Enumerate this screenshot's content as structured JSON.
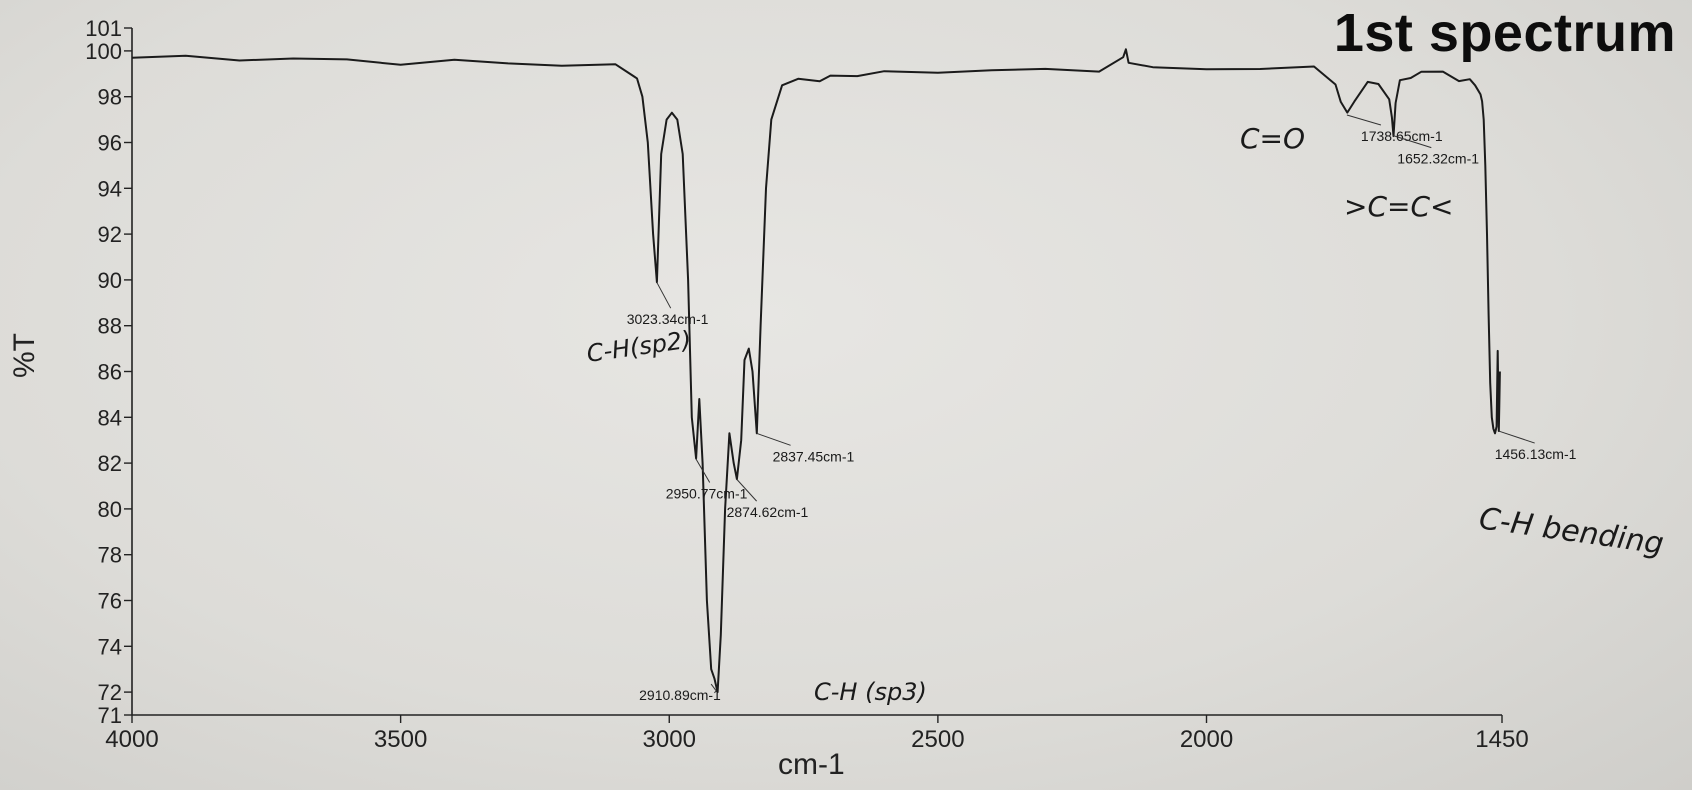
{
  "chart_data": {
    "type": "line",
    "title": "1st spectrum",
    "xlabel": "cm-1",
    "ylabel": "%T",
    "xlim": [
      4000,
      1450
    ],
    "ylim": [
      71,
      101
    ],
    "x_ticks": [
      "4000",
      "3500",
      "3000",
      "2500",
      "2000",
      "1450"
    ],
    "y_ticks": [
      "71",
      "72",
      "74",
      "76",
      "78",
      "80",
      "82",
      "84",
      "86",
      "88",
      "90",
      "92",
      "94",
      "96",
      "98",
      "100",
      "101"
    ],
    "grid": false,
    "series": [
      {
        "x": [
          4000,
          3900,
          3800,
          3700,
          3600,
          3500,
          3400,
          3300,
          3200,
          3100,
          3060,
          3050,
          3040,
          3030,
          3023,
          3015,
          3005,
          2995,
          2985,
          2975,
          2965,
          2958,
          2950,
          2944,
          2938,
          2930,
          2922,
          2916,
          2910,
          2904,
          2896,
          2888,
          2880,
          2874,
          2866,
          2860,
          2852,
          2845,
          2837,
          2830,
          2820,
          2810,
          2790,
          2760,
          2720,
          2700,
          2650,
          2600,
          2500,
          2400,
          2300,
          2200,
          2155,
          2150,
          2145,
          2100,
          2000,
          1900,
          1800,
          1760,
          1750,
          1738,
          1725,
          1700,
          1680,
          1660,
          1655,
          1652,
          1648,
          1640,
          1620,
          1600,
          1560,
          1530,
          1510,
          1500,
          1495,
          1490,
          1487,
          1484,
          1481,
          1478,
          1475,
          1472,
          1469,
          1466,
          1463,
          1460,
          1458,
          1456,
          1455,
          1454
        ],
        "y": [
          99.7,
          99.7,
          99.7,
          99.6,
          99.6,
          99.5,
          99.5,
          99.5,
          99.4,
          99.3,
          98.8,
          98.0,
          96.0,
          92.0,
          89.9,
          95.5,
          97.0,
          97.3,
          97.0,
          95.5,
          90.0,
          84.0,
          82.2,
          84.8,
          82.0,
          76.0,
          73.0,
          72.6,
          72.0,
          74.5,
          80.0,
          83.3,
          82.0,
          81.3,
          83.0,
          86.5,
          87.0,
          86.0,
          83.3,
          88.0,
          94.0,
          97.0,
          98.5,
          98.9,
          98.6,
          98.9,
          99.0,
          99.0,
          99.1,
          99.2,
          99.1,
          99.2,
          99.7,
          100.0,
          99.6,
          99.2,
          99.2,
          99.3,
          99.2,
          98.6,
          97.8,
          97.2,
          97.9,
          98.6,
          98.5,
          98.0,
          97.0,
          96.3,
          97.8,
          98.6,
          98.9,
          99.1,
          99.0,
          98.8,
          98.7,
          98.5,
          98.3,
          98.1,
          97.8,
          97.0,
          95.0,
          92.0,
          88.5,
          85.5,
          84.0,
          83.5,
          83.3,
          83.6,
          86.9,
          83.4,
          84.5,
          86.0
        ],
        "peaks": [
          {
            "x": 3023.34,
            "y": 89.9,
            "label": "3023.34cm-1"
          },
          {
            "x": 2950.77,
            "y": 82.2,
            "label": "2950.77cm-1"
          },
          {
            "x": 2910.89,
            "y": 72.0,
            "label": "2910.89cm-1"
          },
          {
            "x": 2874.62,
            "y": 81.3,
            "label": "2874.62cm-1"
          },
          {
            "x": 2837.45,
            "y": 83.3,
            "label": "2837.45cm-1"
          },
          {
            "x": 1738.65,
            "y": 97.2,
            "label": "1738.65cm-1"
          },
          {
            "x": 1652.32,
            "y": 96.3,
            "label": "1652.32cm-1"
          },
          {
            "x": 1456.13,
            "y": 83.4,
            "label": "1456.13cm-1"
          }
        ]
      }
    ],
    "annotations": [
      "C-H(sp2)",
      "C-H (sp3)",
      "C=O",
      ">C=C<",
      "C-H bending"
    ]
  }
}
